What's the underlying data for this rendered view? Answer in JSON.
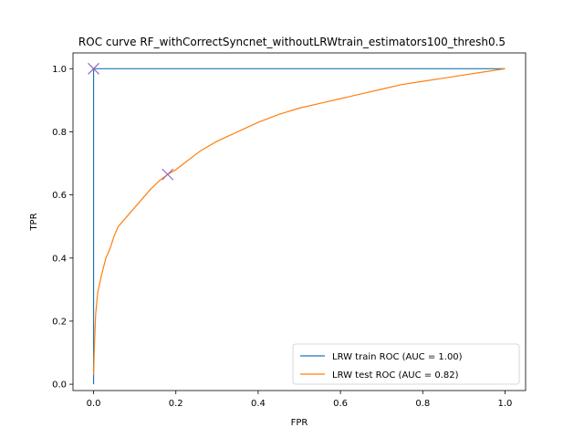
{
  "chart_data": {
    "type": "line",
    "title": "ROC curve RF_withCorrectSyncnet_withoutLRWtrain_estimators100_thresh0.5",
    "xlabel": "FPR",
    "ylabel": "TPR",
    "xlim": [
      -0.05,
      1.05
    ],
    "ylim": [
      -0.02,
      1.05
    ],
    "xticks": [
      "0.0",
      "0.2",
      "0.4",
      "0.6",
      "0.8",
      "1.0"
    ],
    "yticks": [
      "0.0",
      "0.2",
      "0.4",
      "0.6",
      "0.8",
      "1.0"
    ],
    "grid": false,
    "legend_position": "lower right",
    "series": [
      {
        "name": "LRW train ROC (AUC = 1.00)",
        "color": "#1f77b4",
        "x": [
          0.0,
          0.0,
          0.0,
          1.0
        ],
        "y": [
          0.0,
          0.085,
          1.0,
          1.0
        ]
      },
      {
        "name": "LRW test ROC (AUC = 0.82)",
        "color": "#ff7f0e",
        "x": [
          0.0,
          0.002,
          0.005,
          0.01,
          0.02,
          0.03,
          0.04,
          0.05,
          0.06,
          0.08,
          0.1,
          0.12,
          0.14,
          0.16,
          0.18,
          0.2,
          0.22,
          0.26,
          0.3,
          0.35,
          0.4,
          0.45,
          0.5,
          0.55,
          0.6,
          0.65,
          0.7,
          0.75,
          0.8,
          0.85,
          0.9,
          0.95,
          1.0
        ],
        "y": [
          0.03,
          0.12,
          0.22,
          0.29,
          0.35,
          0.4,
          0.43,
          0.47,
          0.5,
          0.53,
          0.56,
          0.59,
          0.62,
          0.645,
          0.665,
          0.68,
          0.7,
          0.74,
          0.77,
          0.8,
          0.83,
          0.855,
          0.875,
          0.89,
          0.905,
          0.92,
          0.935,
          0.95,
          0.96,
          0.97,
          0.98,
          0.99,
          1.0
        ]
      }
    ],
    "markers": [
      {
        "x": 0.0,
        "y": 1.0,
        "symbol": "x",
        "color": "#9467bd"
      },
      {
        "x": 0.18,
        "y": 0.665,
        "symbol": "x",
        "color": "#9467bd"
      }
    ]
  }
}
